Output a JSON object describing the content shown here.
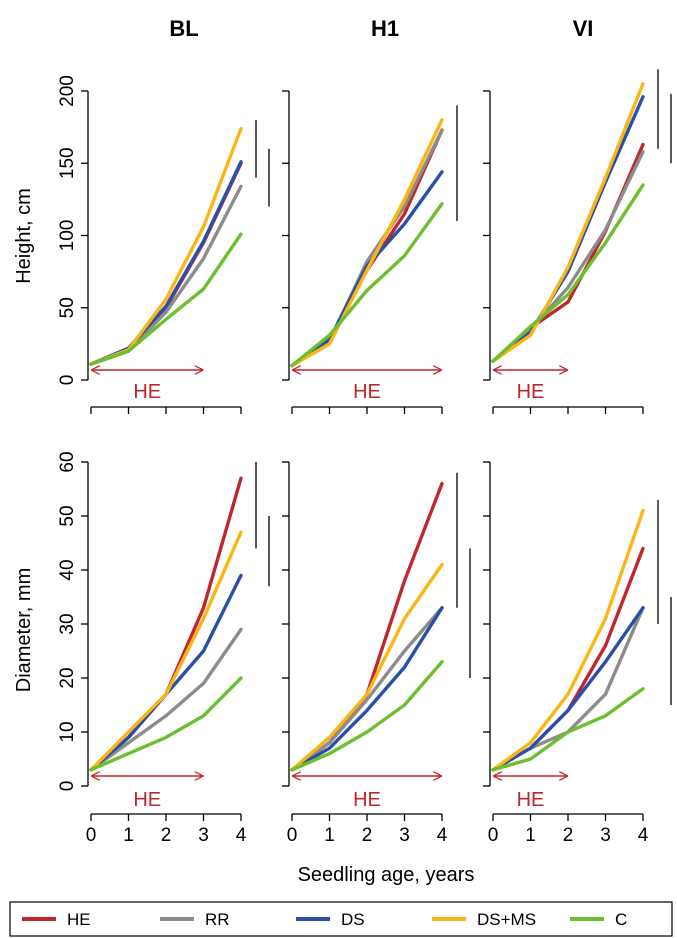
{
  "figure": {
    "columns": [
      "BL",
      "H1",
      "VI"
    ],
    "row_ylabels": [
      "Height, cm",
      "Diameter, mm"
    ],
    "xlabel": "Seedling age, years",
    "he_label": "HE"
  },
  "legend": [
    {
      "name": "HE",
      "color": "#c0272d"
    },
    {
      "name": "RR",
      "color": "#8c8c8c"
    },
    {
      "name": "DS",
      "color": "#2a4fa8"
    },
    {
      "name": "DS+MS",
      "color": "#fbb615"
    },
    {
      "name": "C",
      "color": "#6cbf2e"
    }
  ],
  "chart_data": [
    {
      "type": "line",
      "panel": "BL",
      "quantity": "Height, cm",
      "x": [
        0,
        1,
        2,
        3,
        4
      ],
      "xlim": [
        0,
        4
      ],
      "ylim": [
        0,
        200
      ],
      "xticks": [
        0,
        1,
        2,
        3,
        4
      ],
      "yticks": [
        0,
        50,
        100,
        150,
        200
      ],
      "he_period": [
        0,
        3
      ],
      "significance_bars": [
        [
          140,
          180
        ],
        [
          120,
          160
        ]
      ],
      "series": [
        {
          "name": "HE",
          "values": [
            11,
            21,
            50,
            95,
            150
          ]
        },
        {
          "name": "RR",
          "values": [
            11,
            20,
            47,
            84,
            134
          ]
        },
        {
          "name": "DS",
          "values": [
            11,
            22,
            51,
            96,
            151
          ]
        },
        {
          "name": "DS+MS",
          "values": [
            11,
            21,
            56,
            106,
            174
          ]
        },
        {
          "name": "C",
          "values": [
            11,
            20,
            42,
            63,
            101
          ]
        }
      ]
    },
    {
      "type": "line",
      "panel": "H1",
      "quantity": "Height, cm",
      "x": [
        0,
        1,
        2,
        3,
        4
      ],
      "xlim": [
        0,
        4
      ],
      "ylim": [
        0,
        200
      ],
      "xticks": [
        0,
        1,
        2,
        3,
        4
      ],
      "yticks": [
        0,
        50,
        100,
        150,
        200
      ],
      "he_period": [
        0,
        4
      ],
      "significance_bars": [
        [
          110,
          190
        ]
      ],
      "series": [
        {
          "name": "HE",
          "values": [
            10,
            27,
            76,
            115,
            173
          ]
        },
        {
          "name": "RR",
          "values": [
            10,
            27,
            82,
            120,
            173
          ]
        },
        {
          "name": "DS",
          "values": [
            10,
            28,
            79,
            108,
            144
          ]
        },
        {
          "name": "DS+MS",
          "values": [
            10,
            25,
            76,
            125,
            180
          ]
        },
        {
          "name": "C",
          "values": [
            10,
            31,
            62,
            86,
            122
          ]
        }
      ]
    },
    {
      "type": "line",
      "panel": "VI",
      "quantity": "Height, cm",
      "x": [
        0,
        1,
        2,
        3,
        4
      ],
      "xlim": [
        0,
        4
      ],
      "ylim": [
        0,
        200
      ],
      "xticks": [
        0,
        1,
        2,
        3,
        4
      ],
      "yticks": [
        0,
        50,
        100,
        150,
        200
      ],
      "he_period": [
        0,
        2
      ],
      "significance_bars": [
        [
          160,
          215
        ],
        [
          150,
          198
        ],
        [
          130,
          170
        ]
      ],
      "series": [
        {
          "name": "HE",
          "values": [
            13,
            36,
            54,
            103,
            163
          ]
        },
        {
          "name": "RR",
          "values": [
            13,
            35,
            64,
            104,
            158
          ]
        },
        {
          "name": "DS",
          "values": [
            13,
            33,
            75,
            137,
            196
          ]
        },
        {
          "name": "DS+MS",
          "values": [
            13,
            31,
            78,
            140,
            205
          ]
        },
        {
          "name": "C",
          "values": [
            13,
            37,
            59,
            95,
            135
          ]
        }
      ]
    },
    {
      "type": "line",
      "panel": "BL",
      "quantity": "Diameter, mm",
      "x": [
        0,
        1,
        2,
        3,
        4
      ],
      "xlim": [
        0,
        4
      ],
      "ylim": [
        0,
        60
      ],
      "xticks": [
        0,
        1,
        2,
        3,
        4
      ],
      "yticks": [
        0,
        10,
        20,
        30,
        40,
        50,
        60
      ],
      "he_period": [
        0,
        3
      ],
      "significance_bars": [
        [
          44,
          60
        ],
        [
          37,
          50
        ]
      ],
      "series": [
        {
          "name": "HE",
          "values": [
            3,
            9,
            17,
            33,
            57
          ]
        },
        {
          "name": "RR",
          "values": [
            3,
            8,
            13,
            19,
            29
          ]
        },
        {
          "name": "DS",
          "values": [
            3,
            9,
            17,
            25,
            39
          ]
        },
        {
          "name": "DS+MS",
          "values": [
            3,
            10,
            17,
            31,
            47
          ]
        },
        {
          "name": "C",
          "values": [
            3,
            6,
            9,
            13,
            20
          ]
        }
      ]
    },
    {
      "type": "line",
      "panel": "H1",
      "quantity": "Diameter, mm",
      "x": [
        0,
        1,
        2,
        3,
        4
      ],
      "xlim": [
        0,
        4
      ],
      "ylim": [
        0,
        60
      ],
      "xticks": [
        0,
        1,
        2,
        3,
        4
      ],
      "yticks": [
        0,
        10,
        20,
        30,
        40,
        50,
        60
      ],
      "he_period": [
        0,
        4
      ],
      "significance_bars": [
        [
          33,
          58
        ],
        [
          20,
          44
        ]
      ],
      "series": [
        {
          "name": "HE",
          "values": [
            3,
            8,
            17,
            38,
            56
          ]
        },
        {
          "name": "RR",
          "values": [
            3,
            8,
            16,
            25,
            33
          ]
        },
        {
          "name": "DS",
          "values": [
            3,
            7,
            14,
            22,
            33
          ]
        },
        {
          "name": "DS+MS",
          "values": [
            3,
            9,
            17,
            31,
            41
          ]
        },
        {
          "name": "C",
          "values": [
            3,
            6,
            10,
            15,
            23
          ]
        }
      ]
    },
    {
      "type": "line",
      "panel": "VI",
      "quantity": "Diameter, mm",
      "x": [
        0,
        1,
        2,
        3,
        4
      ],
      "xlim": [
        0,
        4
      ],
      "ylim": [
        0,
        60
      ],
      "xticks": [
        0,
        1,
        2,
        3,
        4
      ],
      "yticks": [
        0,
        10,
        20,
        30,
        40,
        50,
        60
      ],
      "he_period": [
        0,
        2
      ],
      "significance_bars": [
        [
          30,
          53
        ],
        [
          15,
          35
        ]
      ],
      "series": [
        {
          "name": "HE",
          "values": [
            3,
            7,
            14,
            26,
            44
          ]
        },
        {
          "name": "RR",
          "values": [
            3,
            7,
            10,
            17,
            33
          ]
        },
        {
          "name": "DS",
          "values": [
            3,
            7,
            14,
            23,
            33
          ]
        },
        {
          "name": "DS+MS",
          "values": [
            3,
            8,
            17,
            31,
            51
          ]
        },
        {
          "name": "C",
          "values": [
            3,
            5,
            10,
            13,
            18
          ]
        }
      ]
    }
  ]
}
